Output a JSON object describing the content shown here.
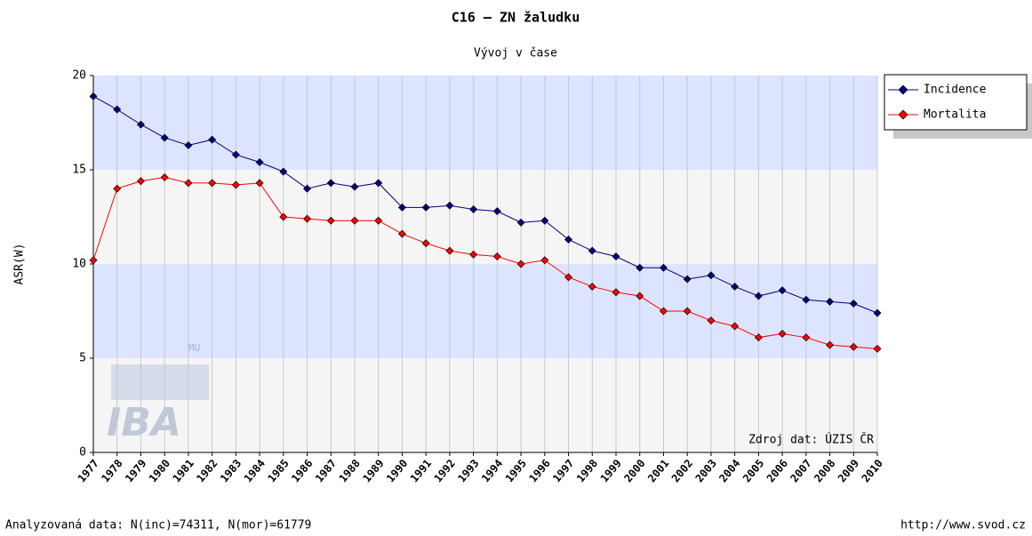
{
  "chart_data": {
    "type": "line",
    "title": "C16 – ZN žaludku",
    "subtitle": "Vývoj v čase",
    "y_label": "ASR(W)",
    "annotation": "Zdroj dat: ÚZIS ČR",
    "footer_left": "Analyzovaná data: N(inc)=74311, N(mor)=61779",
    "footer_right": "http://www.svod.cz",
    "logo": {
      "text": "IBA",
      "sub": "MU"
    },
    "categories": [
      "1977",
      "1978",
      "1979",
      "1980",
      "1981",
      "1982",
      "1983",
      "1984",
      "1985",
      "1986",
      "1987",
      "1988",
      "1989",
      "1990",
      "1991",
      "1992",
      "1993",
      "1994",
      "1995",
      "1996",
      "1997",
      "1998",
      "1999",
      "2000",
      "2001",
      "2002",
      "2003",
      "2004",
      "2005",
      "2006",
      "2007",
      "2008",
      "2009",
      "2010"
    ],
    "series": [
      {
        "name": "Incidence",
        "color": "#000080",
        "values": [
          18.9,
          18.2,
          17.4,
          16.7,
          16.3,
          16.6,
          15.8,
          15.4,
          14.9,
          14.0,
          14.3,
          14.1,
          14.3,
          13.0,
          13.0,
          13.1,
          12.9,
          12.8,
          12.2,
          12.3,
          11.3,
          10.7,
          10.4,
          9.8,
          9.8,
          9.2,
          9.4,
          8.8,
          8.3,
          8.6,
          8.1,
          8.0,
          7.9,
          7.4
        ]
      },
      {
        "name": "Mortalita",
        "color": "#ff0000",
        "values": [
          10.2,
          14.0,
          14.4,
          14.6,
          14.3,
          14.3,
          14.2,
          14.3,
          12.5,
          12.4,
          12.3,
          12.3,
          12.3,
          11.6,
          11.1,
          10.7,
          10.5,
          10.4,
          10.0,
          10.2,
          9.3,
          8.8,
          8.5,
          8.3,
          7.5,
          7.5,
          7.0,
          6.7,
          6.1,
          6.3,
          6.1,
          5.7,
          5.6,
          5.5
        ]
      }
    ],
    "ylim": [
      0,
      20
    ],
    "yticks": [
      0,
      5,
      10,
      15,
      20
    ],
    "band_colors": [
      "#f5f5f5",
      "#dde4ff"
    ],
    "legend": "right"
  }
}
